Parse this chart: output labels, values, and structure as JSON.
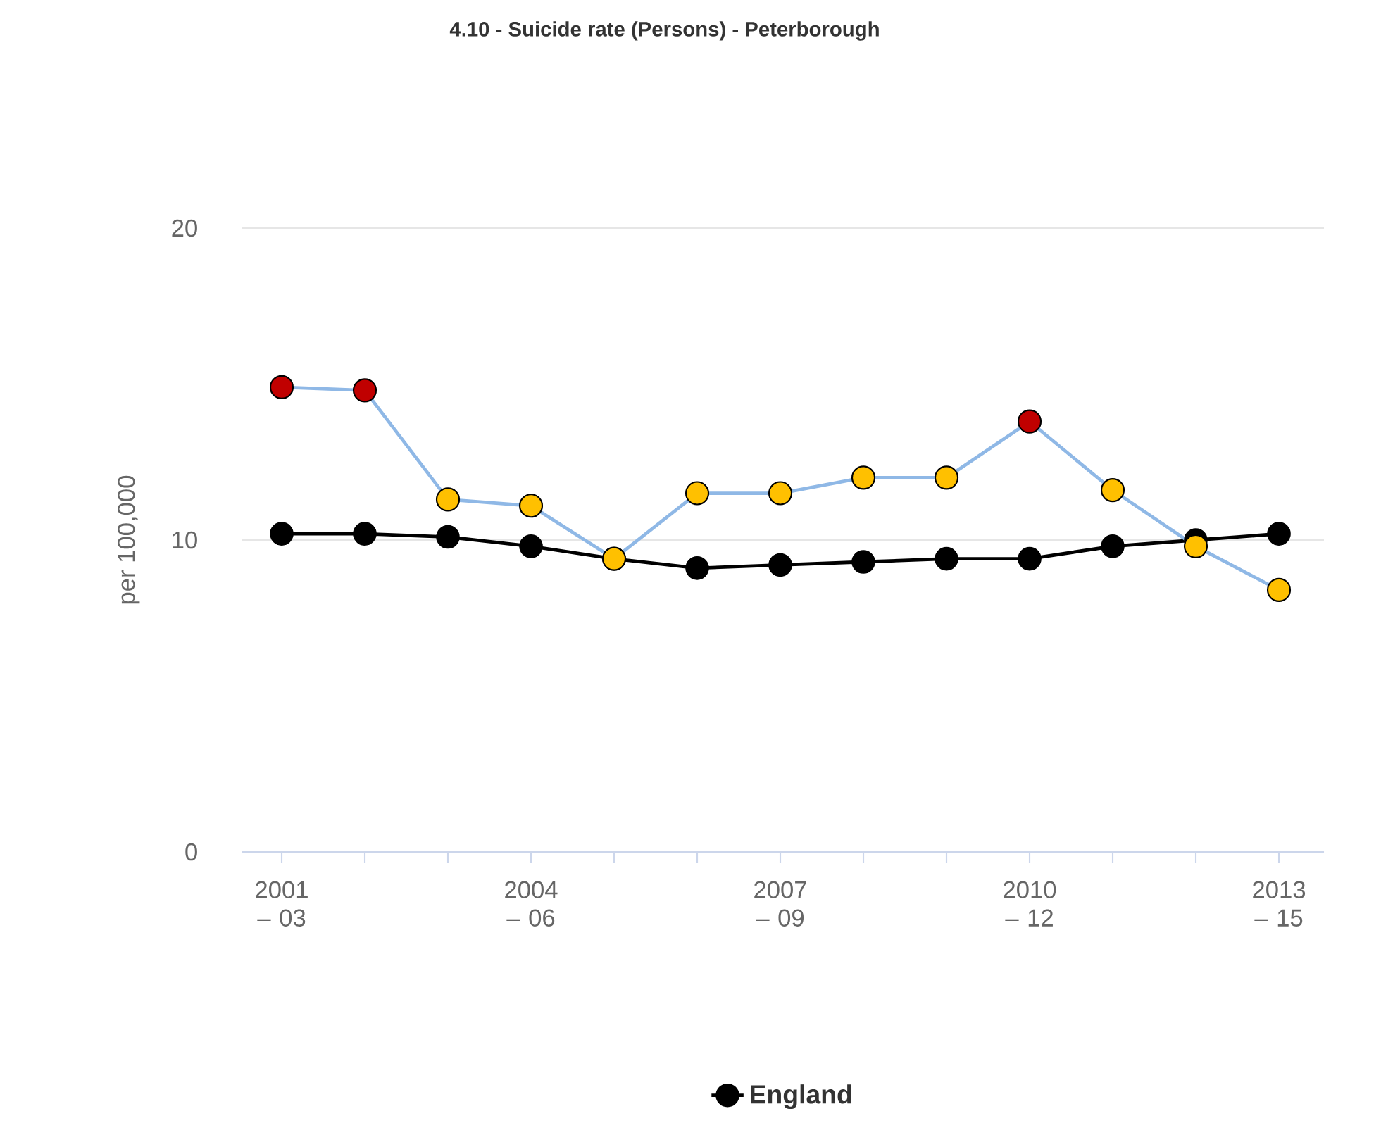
{
  "chart_data": {
    "type": "line",
    "title": "4.10 - Suicide rate (Persons) - Peterborough",
    "ylabel": "per 100,000",
    "categories": [
      "2001 – 03",
      null,
      null,
      "2004 – 06",
      null,
      null,
      "2007 – 09",
      null,
      null,
      "2010 – 12",
      null,
      null,
      "2013 – 15"
    ],
    "series": [
      {
        "color": "#8fb8e6",
        "colors": [
          "#c00000",
          "#c00000",
          "#ffc000",
          "#ffc000",
          "#ffc000",
          "#ffc000",
          "#ffc000",
          "#ffc000",
          "#ffc000",
          "#c00000",
          "#ffc000",
          "#ffc000",
          "#ffc000"
        ],
        "values": [
          14.9,
          14.8,
          11.3,
          11.1,
          9.4,
          11.5,
          11.5,
          12.0,
          12.0,
          13.8,
          11.6,
          9.8,
          8.4
        ]
      },
      {
        "name": "England",
        "color": "#000000",
        "values": [
          10.2,
          10.2,
          10.1,
          9.8,
          9.4,
          9.1,
          9.2,
          9.3,
          9.4,
          9.4,
          9.8,
          10.0,
          10.2
        ]
      }
    ],
    "ylim": [
      0,
      20
    ],
    "yticks": [
      0,
      10,
      20
    ],
    "grid": "y",
    "legend": "bottom",
    "marker": "circle"
  }
}
